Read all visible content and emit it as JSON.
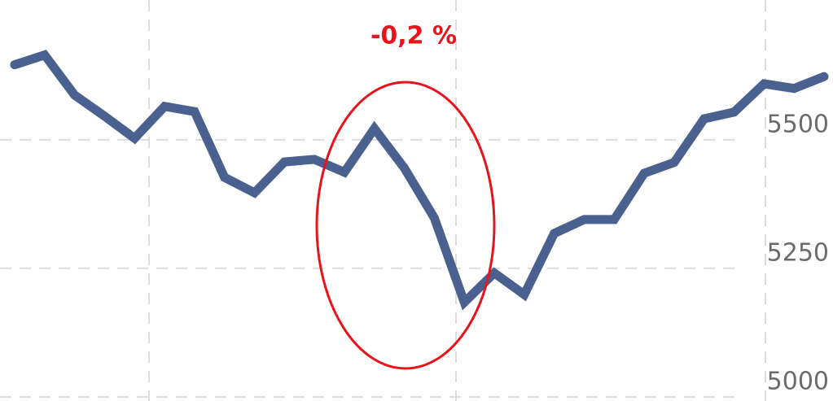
{
  "chart_data": {
    "type": "line",
    "annotation": "-0,2 %",
    "series": [
      {
        "color": "#4a6190",
        "values": [
          5646,
          5665,
          5587,
          5546,
          5503,
          5565,
          5555,
          5427,
          5397,
          5457,
          5462,
          5437,
          5522,
          5445,
          5348,
          5184,
          5241,
          5199,
          5318,
          5345,
          5345,
          5435,
          5456,
          5541,
          5554,
          5609,
          5600,
          5623
        ]
      }
    ],
    "ylim": [
      4992,
      5772
    ],
    "yticks": [
      5000,
      5250,
      5500
    ],
    "grid": true
  }
}
